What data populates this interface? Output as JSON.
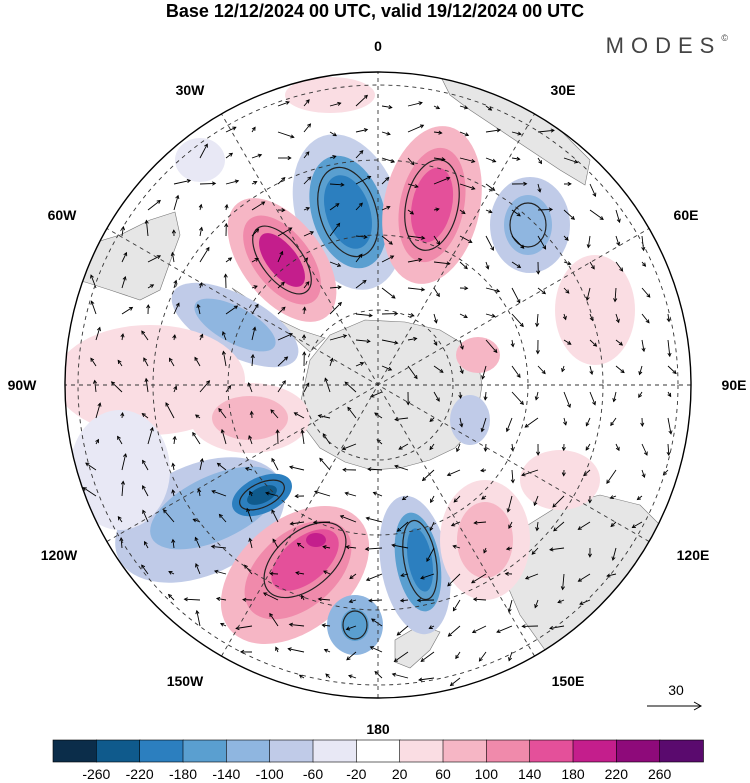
{
  "title": "Base 12/12/2024 00 UTC, valid 19/12/2024 00 UTC",
  "brand": "MODES",
  "brand_mark": "©",
  "longitude_labels": {
    "lon_0": "0",
    "lon_30e": "30E",
    "lon_60e": "60E",
    "lon_90e": "90E",
    "lon_120e": "120E",
    "lon_150e": "150E",
    "lon_180": "180",
    "lon_150w": "150W",
    "lon_120w": "120W",
    "lon_90w": "90W",
    "lon_60w": "60W",
    "lon_30w": "30W"
  },
  "vector_reference": "30",
  "colorbar": {
    "colors": [
      "#0b2d4a",
      "#0f5a8c",
      "#2c7fbf",
      "#5a9fd0",
      "#8fb6e0",
      "#c0cbe8",
      "#e8e8f5",
      "#ffffff",
      "#fadde3",
      "#f6b6c5",
      "#f08aab",
      "#e4509a",
      "#c41e8c",
      "#8e0a7a",
      "#5a0a6e"
    ],
    "tick_labels": [
      "-260",
      "-220",
      "-180",
      "-140",
      "-100",
      "-60",
      "-20",
      "20",
      "60",
      "100",
      "140",
      "180",
      "220",
      "260"
    ]
  },
  "colors": {
    "land": "#e6e6e6",
    "frame": "#000000",
    "grid": "#333333"
  }
}
